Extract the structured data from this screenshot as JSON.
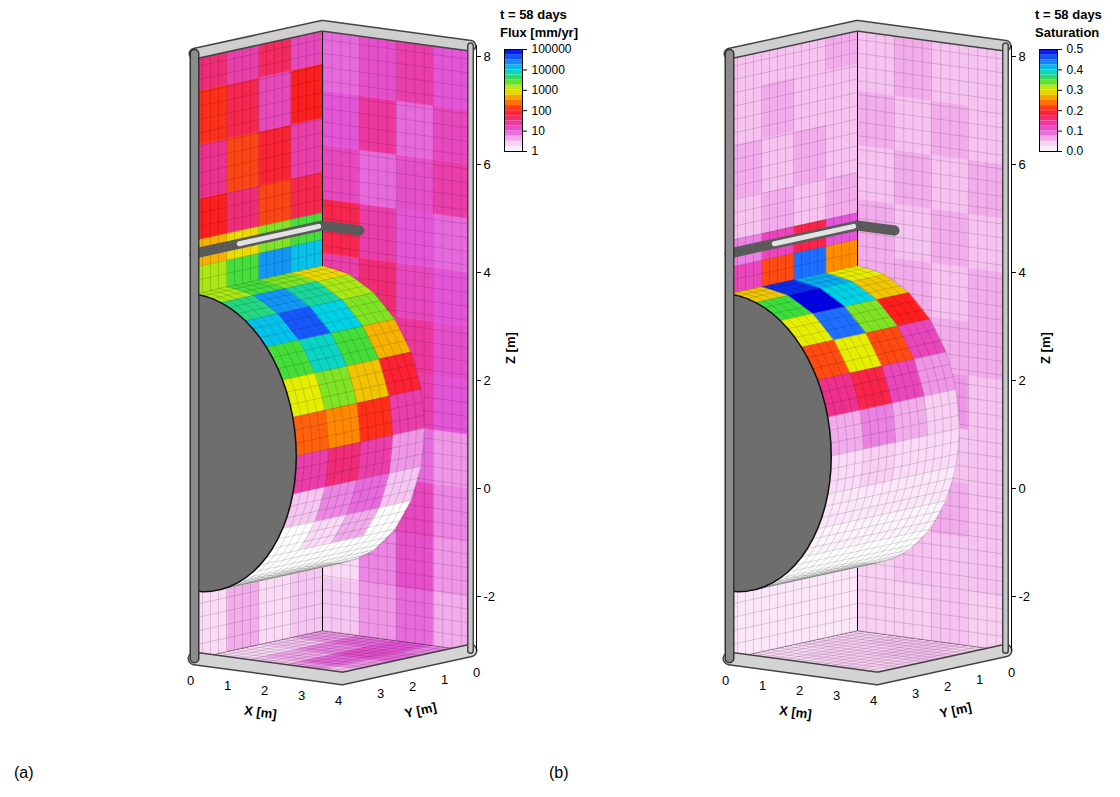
{
  "chart_data": [
    {
      "type": "3d_contour",
      "panel": "(a)",
      "title": "t = 58 days",
      "colorbar": {
        "label": "Flux [mm/yr]",
        "log": true,
        "range": [
          1,
          100000
        ],
        "ticks": [
          1,
          10,
          100,
          1000,
          10000,
          100000
        ]
      },
      "xlabel": "X [m]",
      "ylabel": "Y [m]",
      "zlabel": "Z [m]",
      "xlim": [
        0,
        4
      ],
      "xticks": [
        0,
        1,
        2,
        3,
        4
      ],
      "ylim": [
        0,
        4
      ],
      "yticks": [
        0,
        1,
        2,
        3
      ],
      "zlim": [
        -3,
        8.2
      ],
      "zticks": [
        -2,
        0,
        2,
        4,
        6,
        8
      ],
      "drift": {
        "center_z": 1,
        "radius": 2.75,
        "borehole_z": 4.5
      },
      "floor": {
        "x_edges": [
          0,
          1,
          2,
          3,
          4
        ],
        "y_edges": [
          0,
          1,
          2,
          3,
          4
        ],
        "values": [
          [
            5,
            8,
            10,
            6
          ],
          [
            3,
            6,
            12,
            8
          ],
          [
            2,
            4,
            8,
            5
          ],
          [
            2,
            3,
            5,
            3
          ]
        ]
      },
      "right_wall": {
        "x_edges": [
          0,
          1,
          2,
          3,
          4
        ],
        "z_edges": [
          -3,
          -2,
          -1,
          0,
          1,
          2,
          3,
          4,
          5,
          6,
          7,
          8.2
        ],
        "values": [
          [
            3,
            5,
            8,
            4
          ],
          [
            2,
            6,
            12,
            5
          ],
          [
            3,
            8,
            15,
            6
          ],
          [
            4,
            10,
            8,
            5
          ],
          [
            6,
            15,
            20,
            10
          ],
          [
            10,
            30,
            25,
            12
          ],
          [
            20,
            40,
            15,
            10
          ],
          [
            60,
            20,
            10,
            8
          ],
          [
            15,
            8,
            12,
            20
          ],
          [
            10,
            25,
            8,
            15
          ],
          [
            8,
            12,
            20,
            10
          ]
        ]
      },
      "left_wall_lower": {
        "y_edges": [
          0,
          1,
          2,
          3,
          4
        ],
        "z_edges": [
          -3,
          -1.75
        ],
        "values": [
          [
            3,
            2,
            4,
            2
          ]
        ]
      },
      "left_wall_upper": {
        "y_edges": [
          0,
          1,
          2,
          3,
          4
        ],
        "z_edges": [
          3.75,
          4.25,
          4.75,
          5.5,
          6.5,
          7.5,
          8.2
        ],
        "values": [
          [
            12000,
            20000,
            3000,
            1500
          ],
          [
            3000,
            2000,
            800,
            500
          ],
          [
            60,
            150,
            40,
            100
          ],
          [
            20,
            80,
            150,
            30
          ],
          [
            100,
            15,
            60,
            120
          ],
          [
            15,
            50,
            20,
            40
          ]
        ]
      },
      "drift_surface": {
        "theta_edges": [
          0,
          15,
          30,
          45,
          60,
          75,
          90,
          105,
          120,
          135,
          150,
          165,
          180
        ],
        "y_edges": [
          0,
          1,
          2,
          3,
          4
        ],
        "values": [
          [
            800,
            2000,
            3000,
            1500
          ],
          [
            1500,
            6000,
            20000,
            5000
          ],
          [
            2000,
            10000,
            40000,
            12000
          ],
          [
            500,
            3000,
            8000,
            3000
          ],
          [
            80,
            600,
            2000,
            1000
          ],
          [
            20,
            120,
            300,
            200
          ],
          [
            5,
            20,
            40,
            20
          ],
          [
            3,
            8,
            6,
            3
          ],
          [
            1,
            4,
            2,
            1
          ],
          [
            1,
            1,
            1,
            1
          ],
          [
            1,
            1,
            1,
            1
          ],
          [
            1,
            1,
            1,
            1
          ]
        ]
      }
    },
    {
      "type": "3d_contour",
      "panel": "(b)",
      "title": "t = 58 days",
      "colorbar": {
        "label": "Saturation",
        "log": false,
        "range": [
          0,
          0.5
        ],
        "ticks": [
          {
            "value": 0,
            "label": "0.0"
          },
          0.1,
          0.2,
          0.3,
          0.4,
          0.5
        ]
      },
      "xlabel": "X [m]",
      "ylabel": "Y [m]",
      "zlabel": "Z [m]",
      "xlim": [
        0,
        4
      ],
      "xticks": [
        0,
        1,
        2,
        3,
        4
      ],
      "ylim": [
        0,
        4
      ],
      "yticks": [
        0,
        1,
        2,
        3
      ],
      "zlim": [
        -3,
        8.2
      ],
      "zticks": [
        -2,
        0,
        2,
        4,
        6,
        8
      ],
      "drift": {
        "center_z": 1,
        "radius": 2.75,
        "borehole_z": 4.5
      },
      "floor": {
        "x_edges": [
          0,
          1,
          2,
          3,
          4
        ],
        "y_edges": [
          0,
          1,
          2,
          3,
          4
        ],
        "values": [
          [
            0.04,
            0.05,
            0.05,
            0.04
          ],
          [
            0.04,
            0.04,
            0.05,
            0.05
          ],
          [
            0.03,
            0.04,
            0.04,
            0.04
          ],
          [
            0.03,
            0.03,
            0.04,
            0.03
          ]
        ]
      },
      "right_wall": {
        "x_edges": [
          0,
          1,
          2,
          3,
          4
        ],
        "z_edges": [
          -3,
          -2,
          -1,
          0,
          1,
          2,
          3,
          4,
          5,
          6,
          7,
          8.2
        ],
        "values": [
          [
            0.04,
            0.04,
            0.05,
            0.04
          ],
          [
            0.04,
            0.05,
            0.05,
            0.05
          ],
          [
            0.05,
            0.05,
            0.06,
            0.05
          ],
          [
            0.05,
            0.06,
            0.05,
            0.05
          ],
          [
            0.06,
            0.06,
            0.07,
            0.05
          ],
          [
            0.07,
            0.06,
            0.06,
            0.06
          ],
          [
            0.06,
            0.06,
            0.05,
            0.06
          ],
          [
            0.06,
            0.05,
            0.06,
            0.05
          ],
          [
            0.05,
            0.06,
            0.05,
            0.06
          ],
          [
            0.06,
            0.05,
            0.06,
            0.05
          ],
          [
            0.05,
            0.06,
            0.05,
            0.05
          ]
        ]
      },
      "left_wall_lower": {
        "y_edges": [
          0,
          1,
          2,
          3,
          4
        ],
        "z_edges": [
          -3,
          -1.75
        ],
        "values": [
          [
            0.02,
            0.02,
            0.02,
            0.02
          ]
        ]
      },
      "left_wall_upper": {
        "y_edges": [
          0,
          1,
          2,
          3,
          4
        ],
        "z_edges": [
          3.75,
          4.25,
          4.75,
          5.5,
          6.5,
          7.5,
          8.2
        ],
        "values": [
          [
            0.25,
            0.45,
            0.22,
            0.12
          ],
          [
            0.1,
            0.18,
            0.12,
            0.08
          ],
          [
            0.06,
            0.05,
            0.06,
            0.05
          ],
          [
            0.05,
            0.06,
            0.05,
            0.06
          ],
          [
            0.05,
            0.05,
            0.06,
            0.05
          ],
          [
            0.06,
            0.05,
            0.05,
            0.05
          ]
        ]
      },
      "drift_surface": {
        "theta_edges": [
          0,
          15,
          30,
          45,
          60,
          75,
          90,
          105,
          120,
          135,
          150,
          165,
          180
        ],
        "y_edges": [
          0,
          1,
          2,
          3,
          4
        ],
        "values": [
          [
            0.3,
            0.42,
            0.48,
            0.28
          ],
          [
            0.28,
            0.4,
            0.5,
            0.35
          ],
          [
            0.2,
            0.33,
            0.45,
            0.3
          ],
          [
            0.12,
            0.22,
            0.3,
            0.22
          ],
          [
            0.07,
            0.12,
            0.18,
            0.15
          ],
          [
            0.04,
            0.06,
            0.08,
            0.06
          ],
          [
            0.03,
            0.03,
            0.04,
            0.03
          ],
          [
            0.02,
            0.02,
            0.02,
            0.02
          ],
          [
            0.01,
            0.01,
            0.01,
            0.01
          ],
          [
            0,
            0,
            0,
            0
          ],
          [
            0,
            0,
            0,
            0
          ],
          [
            0,
            0,
            0,
            0
          ]
        ]
      }
    }
  ]
}
